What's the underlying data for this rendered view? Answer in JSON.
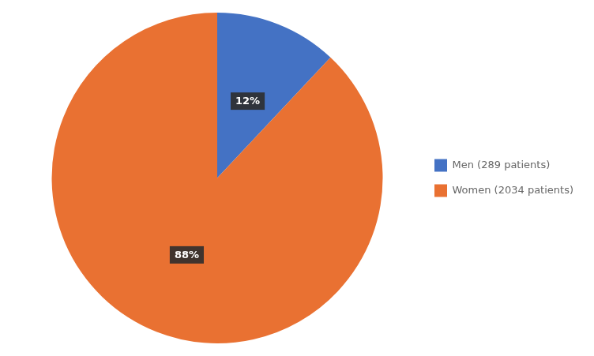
{
  "chart_data": {
    "type": "pie",
    "categories": [
      "Men (289 patients)",
      "Women (2034 patients)"
    ],
    "values": [
      12,
      88
    ],
    "value_labels": [
      "12%",
      "88%"
    ],
    "colors": [
      "#4472C4",
      "#E97132"
    ],
    "legend": "right",
    "data_labels": true
  }
}
